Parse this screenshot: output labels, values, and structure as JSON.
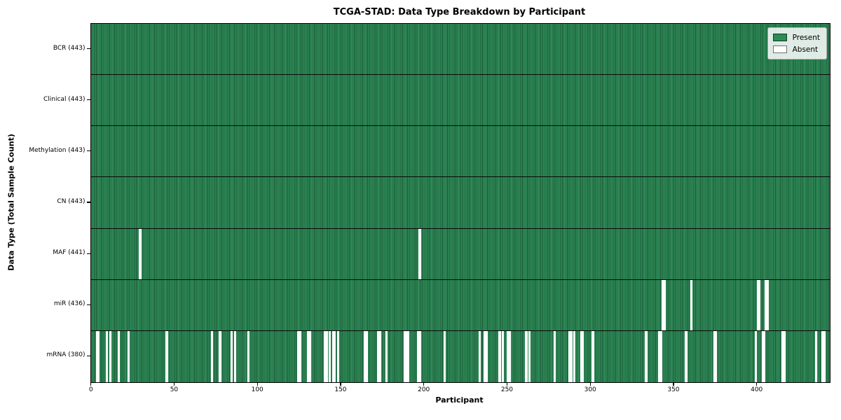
{
  "chart_data": {
    "type": "heatmap",
    "title": "TCGA-STAD: Data Type Breakdown by Participant",
    "xlabel": "Participant",
    "ylabel": "Data Type (Total Sample Count)",
    "x_ticks": [
      0,
      50,
      100,
      150,
      200,
      250,
      300,
      350,
      400
    ],
    "x_range": [
      0,
      443
    ],
    "n_participants": 443,
    "legend_position": "upper right",
    "grid": false,
    "colors": {
      "present": "#2e8b57",
      "present_edge": "#1c5737",
      "absent": "#ffffff",
      "row_divider": "#0a0a0a"
    },
    "legend": [
      {
        "label": "Present",
        "color": "#2e8b57"
      },
      {
        "label": "Absent",
        "color": "#ffffff"
      }
    ],
    "rows": [
      {
        "label": "BCR (443)",
        "data_type": "BCR",
        "present_count": 443,
        "absent_participants": []
      },
      {
        "label": "Clinical (443)",
        "data_type": "Clinical",
        "present_count": 443,
        "absent_participants": []
      },
      {
        "label": "Methylation (443)",
        "data_type": "Methylation",
        "present_count": 443,
        "absent_participants": []
      },
      {
        "label": "CN (443)",
        "data_type": "CN",
        "present_count": 443,
        "absent_participants": []
      },
      {
        "label": "MAF (441)",
        "data_type": "MAF",
        "present_count": 441,
        "absent_participants": [
          29,
          197
        ]
      },
      {
        "label": "miR (436)",
        "data_type": "miR",
        "present_count": 436,
        "absent_participants": [
          343,
          344,
          360,
          400,
          401,
          405,
          406
        ]
      },
      {
        "label": "mRNA (380)",
        "data_type": "mRNA",
        "present_count": 380,
        "absent_participants": [
          3,
          4,
          9,
          11,
          16,
          22,
          45,
          72,
          77,
          84,
          86,
          94,
          124,
          125,
          130,
          131,
          140,
          141,
          143,
          145,
          146,
          148,
          164,
          165,
          172,
          173,
          177,
          188,
          189,
          190,
          196,
          197,
          212,
          233,
          236,
          237,
          245,
          247,
          250,
          251,
          261,
          263,
          278,
          287,
          288,
          290,
          294,
          295,
          301,
          333,
          341,
          342,
          357,
          374,
          375,
          399,
          403,
          404,
          415,
          416,
          435,
          439,
          440
        ]
      }
    ]
  }
}
